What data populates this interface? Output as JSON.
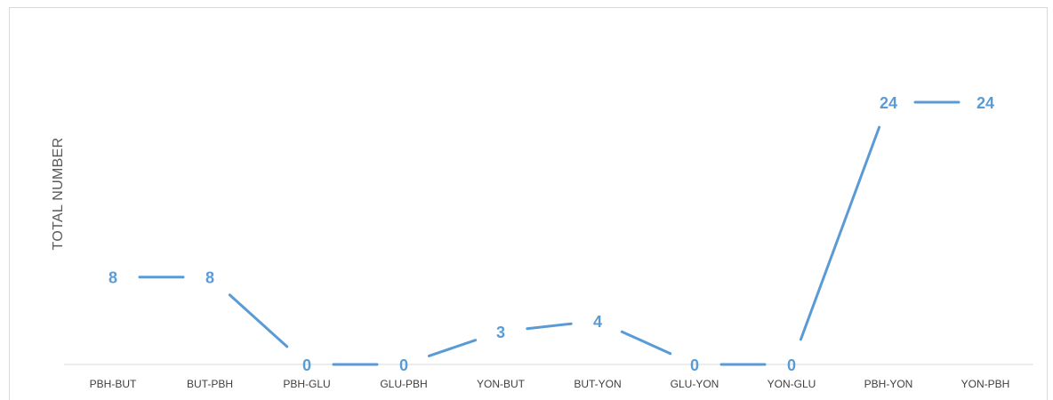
{
  "chart_data": {
    "type": "line",
    "categories": [
      "PBH-BUT",
      "BUT-PBH",
      "PBH-GLU",
      "GLU-PBH",
      "YON-BUT",
      "BUT-YON",
      "GLU-YON",
      "YON-GLU",
      "PBH-YON",
      "YON-PBH"
    ],
    "series": [
      {
        "values": [
          8,
          8,
          0,
          0,
          3,
          4,
          0,
          0,
          24,
          24
        ]
      }
    ],
    "title": "",
    "xlabel": "",
    "ylabel": "TOTAL NUMBER",
    "ylim": [
      0,
      30
    ],
    "grid": false,
    "data_labels": true,
    "colors": {
      "series": "#5b9bd5",
      "axis": "#d9d9d9",
      "tick_text": "#404040"
    }
  }
}
